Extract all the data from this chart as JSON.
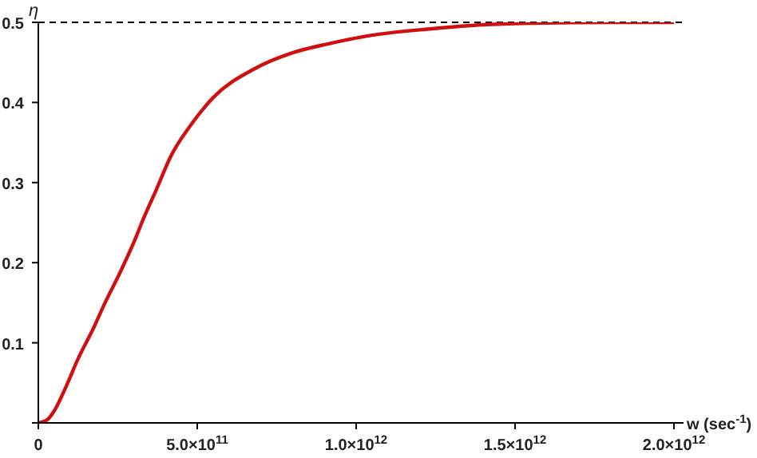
{
  "chart_data": {
    "type": "line",
    "xlabel": "w (sec$^{-1}$)",
    "ylabel": "η",
    "x": [
      0,
      25000000000,
      50000000000,
      88000000000,
      125000000000,
      172000000000,
      210000000000,
      255000000000,
      300000000000,
      333000000000,
      370000000000,
      417000000000,
      480000000000,
      550000000000,
      680000000000,
      800000000000,
      910000000000,
      1050000000000,
      1240000000000,
      1400000000000,
      1560000000000,
      1800000000000,
      2000000000000
    ],
    "series": [
      {
        "color": "#d01010",
        "values": [
          0,
          0.003,
          0.015,
          0.046,
          0.08,
          0.117,
          0.15,
          0.186,
          0.225,
          0.257,
          0.29,
          0.333,
          0.372,
          0.406,
          0.442,
          0.462,
          0.473,
          0.484,
          0.492,
          0.497,
          0.499,
          0.5,
          0.5
        ]
      }
    ],
    "xlim": [
      0,
      2030000000000
    ],
    "xticks": [
      0,
      {
        "value": 500000000000,
        "label": "5.0×10$^{11}$"
      },
      {
        "value": 1000000000000,
        "label": "1.0×10$^{12}$"
      },
      {
        "value": 1500000000000,
        "label": "1.5×10$^{12}$"
      },
      {
        "value": 2000000000000,
        "label": "2.0×10$^{12}$"
      }
    ],
    "ylim": [
      0,
      0.5
    ],
    "yticks": [
      {
        "value": 0,
        "label": null
      },
      0.1,
      0.2,
      0.3,
      0.4,
      0.5
    ],
    "ref_lines": [
      {
        "axis": "y",
        "value": 0.5,
        "color": "#000000",
        "line_style": "dashed"
      }
    ],
    "grid": false,
    "legend": false,
    "marker": "none",
    "line_style": "solid"
  }
}
